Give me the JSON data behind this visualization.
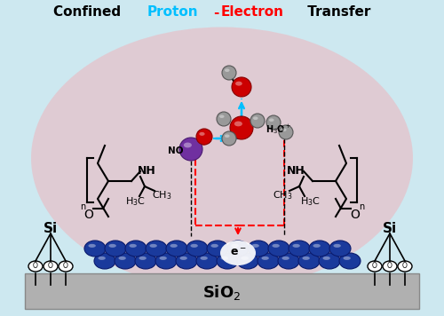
{
  "title_parts": [
    {
      "text": "Confined ",
      "color": "#000000"
    },
    {
      "text": "Proton",
      "color": "#00bfff"
    },
    {
      "text": "-",
      "color": "#ff0000"
    },
    {
      "text": "Electron",
      "color": "#ff0000"
    },
    {
      "text": " Transfer",
      "color": "#000000"
    }
  ],
  "bg_color": "#cde8f0",
  "ellipse_color": "#e2c8d0",
  "sio2_color": "#b0b0b0",
  "blue_sphere_color": "#1a3a9c",
  "blue_sphere_edge": "#0a1a6c",
  "red_sphere_color": "#cc0000",
  "purple_sphere_color": "#7030a0",
  "gray_sphere_color": "#999999",
  "dashed_red_color": "#ff0000",
  "dashed_blue_color": "#00bfff"
}
